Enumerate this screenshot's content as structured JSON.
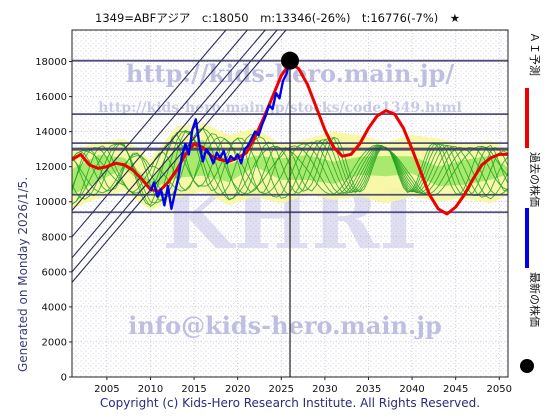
{
  "header": "1349=ABFアジア　c:18050　m:13346(-26%)　t:16776(-7%)　★",
  "side_label": "Generated on Monday 2026/1/5.",
  "copyright": "Copyright (c) Kids-Hero Research Institute. All Rights Reserved.",
  "watermarks": {
    "url_big": "http://kids-hero.main.jp/",
    "url_small": "http://kids-hero.main.jp/stocks/code1349.html",
    "logo": "KHRI",
    "email": "info@kids-hero.main.jp"
  },
  "legend": [
    {
      "label": "ＡＩ予測",
      "color": "#ee0000",
      "marker": "line"
    },
    {
      "label": "過去の株価",
      "color": "#0000ee",
      "marker": "line"
    },
    {
      "label": "最新の株価",
      "color": "#000000",
      "marker": "dot"
    }
  ],
  "colors": {
    "band_fill": "#f7f7a0",
    "band_green": "#8ee65a",
    "band_lines": "#22a022",
    "past_price": "#0000ee",
    "ai_prediction": "#ee0000",
    "trend_lines": "#2a2a5a",
    "hlines": "#333366",
    "grid": "#bfbfbf"
  },
  "chart_data": {
    "type": "line",
    "xlim": [
      2001,
      2051
    ],
    "ylim": [
      0,
      19800
    ],
    "xticks": [
      2005,
      2010,
      2015,
      2020,
      2025,
      2030,
      2035,
      2040,
      2045,
      2050
    ],
    "yticks": [
      0,
      2000,
      4000,
      6000,
      8000,
      10000,
      12000,
      14000,
      16000,
      18000
    ],
    "grid": true,
    "latest": {
      "x": 2026.0,
      "y": 18050
    },
    "current_marker_x": 2026.0,
    "hlines": [
      18050,
      15000,
      13346,
      13000,
      10400,
      9400
    ],
    "trend_lines": [
      {
        "x": [
          2001,
          2031
        ],
        "y": [
          5400,
          23000
        ]
      },
      {
        "x": [
          2001,
          2031
        ],
        "y": [
          6000,
          23600
        ]
      },
      {
        "x": [
          2001,
          2031
        ],
        "y": [
          6800,
          24400
        ]
      },
      {
        "x": [
          2001,
          2031
        ],
        "y": [
          8000,
          25600
        ]
      },
      {
        "x": [
          2001,
          2031
        ],
        "y": [
          9500,
          27000
        ]
      }
    ],
    "band": {
      "x": [
        2001,
        2004,
        2007,
        2010,
        2013,
        2016,
        2019,
        2022,
        2025,
        2028,
        2031,
        2034,
        2037,
        2040,
        2043,
        2046,
        2049,
        2051
      ],
      "upper": [
        13000,
        13400,
        13600,
        12400,
        14300,
        14500,
        13800,
        14200,
        13300,
        13600,
        14000,
        13800,
        13400,
        13800,
        13600,
        13300,
        13500,
        13000
      ],
      "lower": [
        9600,
        10200,
        10600,
        9500,
        10200,
        10600,
        9800,
        10300,
        9900,
        10400,
        10100,
        10300,
        9900,
        10300,
        10000,
        10200,
        9900,
        10400
      ]
    },
    "series": [
      {
        "name": "ＡＩ予測",
        "x": [
          2001,
          2002,
          2003,
          2004,
          2005,
          2006,
          2007,
          2008,
          2009,
          2010,
          2011,
          2012,
          2013,
          2014,
          2015,
          2016,
          2017,
          2018,
          2019,
          2020,
          2021,
          2022,
          2023,
          2024,
          2025,
          2026,
          2027,
          2028,
          2029,
          2030,
          2031,
          2032,
          2033,
          2034,
          2035,
          2036,
          2037,
          2038,
          2039,
          2040,
          2041,
          2042,
          2043,
          2044,
          2045,
          2046,
          2047,
          2048,
          2049,
          2050,
          2051
        ],
        "y": [
          12400,
          12700,
          12100,
          11900,
          12000,
          12200,
          12100,
          11800,
          11300,
          10700,
          10600,
          11100,
          11800,
          12700,
          13300,
          13100,
          12600,
          12400,
          12300,
          12500,
          12800,
          13700,
          14800,
          16000,
          17200,
          17900,
          17600,
          16700,
          15400,
          14100,
          13100,
          12600,
          12700,
          13300,
          14200,
          14900,
          15200,
          15000,
          14200,
          13000,
          11700,
          10400,
          9600,
          9300,
          9700,
          10400,
          11300,
          12100,
          12500,
          12700,
          12700
        ]
      },
      {
        "name": "過去の株価",
        "x": [
          2010.0,
          2010.4,
          2010.8,
          2011.2,
          2011.6,
          2012.0,
          2012.4,
          2012.8,
          2013.2,
          2013.6,
          2014.0,
          2014.4,
          2014.8,
          2015.2,
          2015.6,
          2016.0,
          2016.4,
          2016.8,
          2017.2,
          2017.6,
          2018.0,
          2018.4,
          2018.8,
          2019.2,
          2019.6,
          2020.0,
          2020.4,
          2020.8,
          2021.2,
          2021.6,
          2022.0,
          2022.4,
          2022.8,
          2023.2,
          2023.6,
          2024.0,
          2024.4,
          2024.8,
          2025.2,
          2025.6,
          2026.0
        ],
        "y": [
          10600,
          11100,
          10300,
          10700,
          9800,
          10900,
          9600,
          10500,
          11400,
          12600,
          13300,
          12700,
          14100,
          14700,
          13300,
          12300,
          13000,
          12700,
          12200,
          12800,
          12500,
          12900,
          12200,
          12600,
          12400,
          12700,
          12200,
          13000,
          13200,
          13600,
          14000,
          13800,
          14400,
          14900,
          15500,
          15300,
          16200,
          15900,
          16900,
          17300,
          18050
        ]
      }
    ]
  }
}
